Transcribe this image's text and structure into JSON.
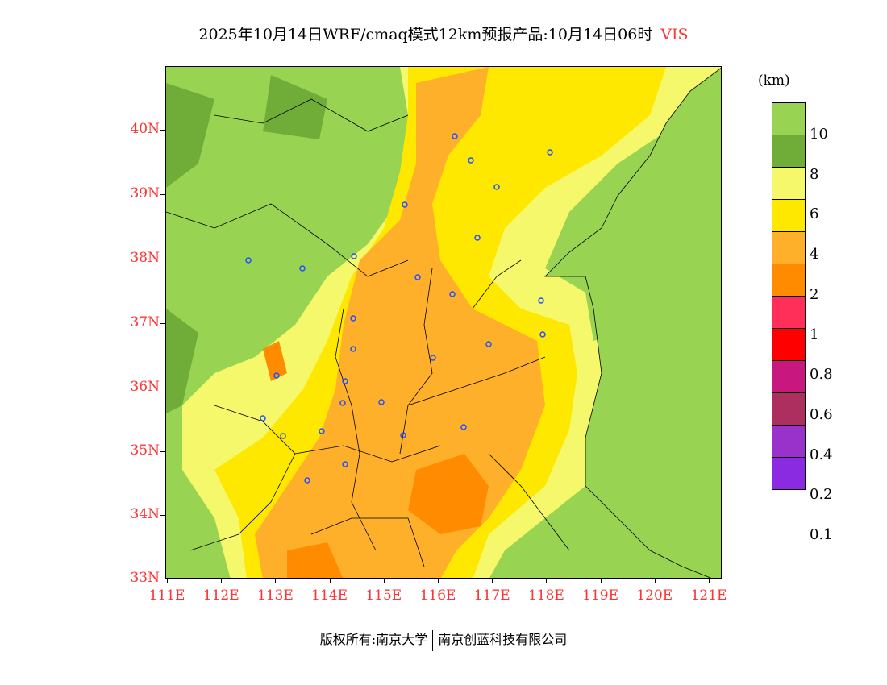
{
  "title": {
    "text": "2025年10月14日WRF/cmaq模式12km预报产品:10月14日06时",
    "variable": "VIS"
  },
  "axes": {
    "lat_labels": [
      "40N",
      "39N",
      "38N",
      "37N",
      "36N",
      "35N",
      "34N",
      "33N"
    ],
    "lon_labels": [
      "111E",
      "112E",
      "113E",
      "114E",
      "115E",
      "116E",
      "117E",
      "118E",
      "119E",
      "120E",
      "121E"
    ]
  },
  "legend": {
    "unit": "(km)",
    "colors": [
      "#98d352",
      "#70ad38",
      "#f4f86a",
      "#ffe800",
      "#ffb02a",
      "#ff8c00",
      "#ff2f5a",
      "#ff0000",
      "#c8177f",
      "#ad2f5f",
      "#9932cb",
      "#8a2be2"
    ],
    "labels": [
      "10",
      "8",
      "6",
      "4",
      "2",
      "1",
      "0.8",
      "0.6",
      "0.4",
      "0.2",
      "0.1"
    ]
  },
  "footer": {
    "copyright": "版权所有:南京大学",
    "company": "南京创蓝科技有限公司"
  }
}
